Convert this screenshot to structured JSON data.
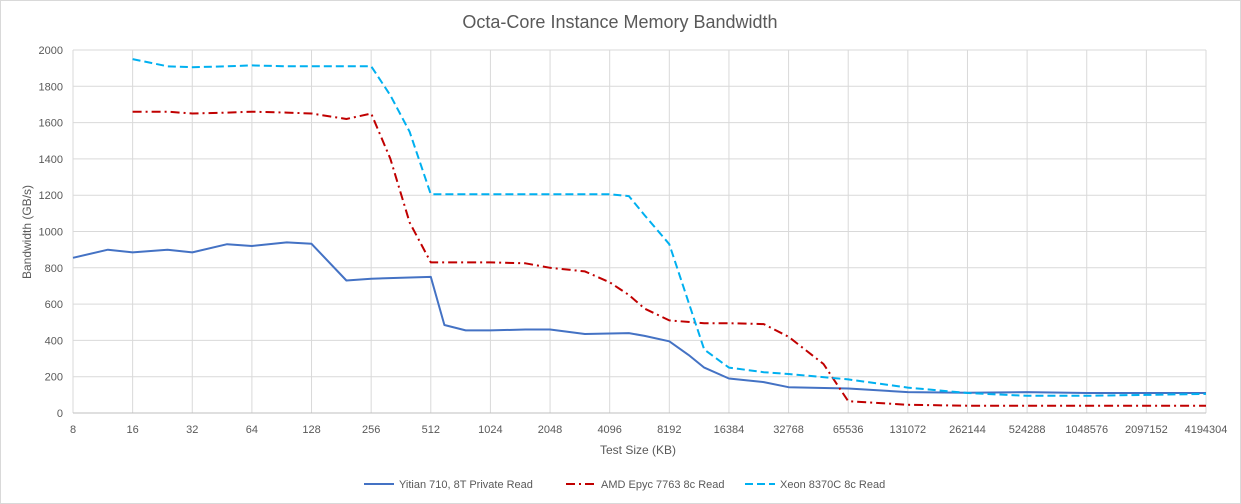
{
  "chart_data": {
    "type": "line",
    "title": "Octa-Core Instance Memory Bandwidth",
    "xlabel": "Test Size (KB)",
    "ylabel": "Bandwidth (GB/s)",
    "x_scale": "log2",
    "xlim": [
      8,
      4194304
    ],
    "ylim": [
      0,
      2000
    ],
    "yticks": [
      0,
      200,
      400,
      600,
      800,
      1000,
      1200,
      1400,
      1600,
      1800,
      2000
    ],
    "xticks": [
      "8",
      "16",
      "32",
      "64",
      "128",
      "256",
      "512",
      "1024",
      "2048",
      "4096",
      "8192",
      "16384",
      "32768",
      "65536",
      "131072",
      "262144",
      "524288",
      "1048576",
      "2097152",
      "4194304"
    ],
    "grid": true,
    "legend": "bottom",
    "series": [
      {
        "name": "Yitian 710, 8T Private Read",
        "color": "#4472c4",
        "dash": "solid",
        "points": [
          [
            8,
            855
          ],
          [
            12,
            900
          ],
          [
            16,
            885
          ],
          [
            24,
            900
          ],
          [
            32,
            885
          ],
          [
            48,
            930
          ],
          [
            64,
            920
          ],
          [
            96,
            940
          ],
          [
            128,
            932
          ],
          [
            192,
            730
          ],
          [
            256,
            740
          ],
          [
            512,
            750
          ],
          [
            600,
            485
          ],
          [
            768,
            455
          ],
          [
            1024,
            455
          ],
          [
            1536,
            460
          ],
          [
            2048,
            460
          ],
          [
            3072,
            435
          ],
          [
            4096,
            438
          ],
          [
            5120,
            440
          ],
          [
            6144,
            425
          ],
          [
            8192,
            395
          ],
          [
            10240,
            320
          ],
          [
            12288,
            250
          ],
          [
            16384,
            190
          ],
          [
            24576,
            170
          ],
          [
            32768,
            142
          ],
          [
            65536,
            135
          ],
          [
            131072,
            115
          ],
          [
            262144,
            112
          ],
          [
            524288,
            115
          ],
          [
            1048576,
            110
          ],
          [
            2097152,
            110
          ],
          [
            4194304,
            110
          ]
        ]
      },
      {
        "name": "AMD Epyc 7763 8c Read",
        "color": "#c00000",
        "dash": "dashdot",
        "points": [
          [
            16,
            1660
          ],
          [
            24,
            1660
          ],
          [
            32,
            1650
          ],
          [
            48,
            1655
          ],
          [
            64,
            1660
          ],
          [
            96,
            1655
          ],
          [
            128,
            1650
          ],
          [
            192,
            1620
          ],
          [
            256,
            1650
          ],
          [
            320,
            1400
          ],
          [
            400,
            1050
          ],
          [
            512,
            830
          ],
          [
            768,
            830
          ],
          [
            1024,
            830
          ],
          [
            1536,
            825
          ],
          [
            2048,
            800
          ],
          [
            3072,
            780
          ],
          [
            4096,
            720
          ],
          [
            5120,
            650
          ],
          [
            6144,
            575
          ],
          [
            8192,
            510
          ],
          [
            12288,
            495
          ],
          [
            16384,
            495
          ],
          [
            24576,
            490
          ],
          [
            32768,
            420
          ],
          [
            49152,
            270
          ],
          [
            65536,
            65
          ],
          [
            131072,
            45
          ],
          [
            262144,
            40
          ],
          [
            524288,
            40
          ],
          [
            1048576,
            40
          ],
          [
            2097152,
            40
          ],
          [
            4194304,
            40
          ]
        ]
      },
      {
        "name": "Xeon 8370C 8c Read",
        "color": "#00b0f0",
        "dash": "dash",
        "points": [
          [
            16,
            1950
          ],
          [
            24,
            1910
          ],
          [
            32,
            1905
          ],
          [
            48,
            1910
          ],
          [
            64,
            1915
          ],
          [
            96,
            1910
          ],
          [
            128,
            1910
          ],
          [
            192,
            1910
          ],
          [
            256,
            1910
          ],
          [
            320,
            1750
          ],
          [
            400,
            1550
          ],
          [
            512,
            1205
          ],
          [
            768,
            1205
          ],
          [
            1024,
            1205
          ],
          [
            1536,
            1205
          ],
          [
            2048,
            1205
          ],
          [
            3072,
            1205
          ],
          [
            4096,
            1205
          ],
          [
            5120,
            1195
          ],
          [
            6144,
            1090
          ],
          [
            8192,
            930
          ],
          [
            12288,
            350
          ],
          [
            16384,
            250
          ],
          [
            24576,
            225
          ],
          [
            32768,
            215
          ],
          [
            65536,
            185
          ],
          [
            131072,
            140
          ],
          [
            262144,
            110
          ],
          [
            524288,
            95
          ],
          [
            1048576,
            95
          ],
          [
            2097152,
            100
          ],
          [
            4194304,
            105
          ]
        ]
      }
    ]
  }
}
